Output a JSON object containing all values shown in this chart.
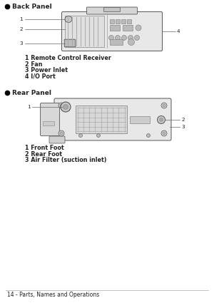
{
  "bg_color": "#ffffff",
  "title_fontsize": 6.5,
  "label_fontsize": 5.8,
  "footer_fontsize": 5.5,
  "callout_fontsize": 5.2,
  "back_panel_title": "Back Panel",
  "rear_panel_title": "Rear Panel",
  "back_labels": [
    "1 Remote Control Receiver",
    "2 Fan",
    "3 Power Inlet",
    "4 I/O Port"
  ],
  "rear_labels": [
    "1 Front Foot",
    "2 Rear Foot",
    "3 Air Filter (suction inlet)"
  ],
  "footer": "14 - Parts, Names and Operations",
  "text_color": "#222222",
  "line_color": "#666666",
  "device_fill": "#e8e8e8",
  "device_border": "#555555",
  "grille_color": "#aaaaaa",
  "connector_fill": "#bbbbbb"
}
